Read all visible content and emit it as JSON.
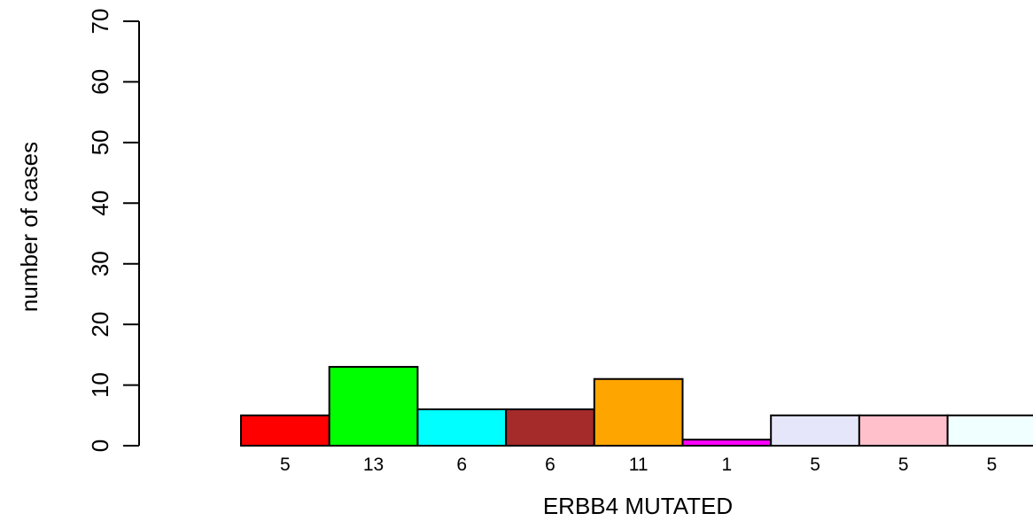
{
  "chart_data": {
    "type": "bar",
    "title": "",
    "xlabel": "ERBB4 MUTATED",
    "ylabel": "number of cases",
    "ylim": [
      0,
      70
    ],
    "yticks": [
      0,
      10,
      20,
      30,
      40,
      50,
      60,
      70
    ],
    "grid": false,
    "categories": [
      "5",
      "13",
      "6",
      "6",
      "11",
      "1",
      "5",
      "5",
      "5"
    ],
    "values": [
      5,
      13,
      6,
      6,
      11,
      1,
      5,
      5,
      5
    ],
    "colors": [
      "#ff0000",
      "#00ff00",
      "#00ffff",
      "#a52a2a",
      "#ffa500",
      "#ff00ff",
      "#e6e6fa",
      "#ffc0cb",
      "#f0ffff"
    ]
  }
}
